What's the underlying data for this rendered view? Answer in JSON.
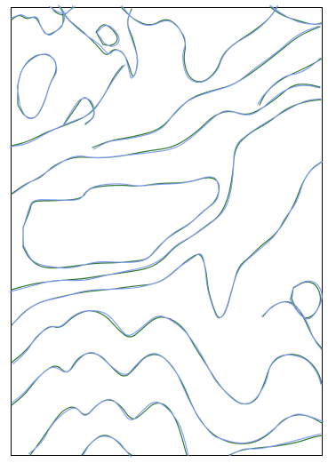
{
  "map": {
    "type": "contour-lines-comparison",
    "line_colors": {
      "blue": "#7f96ff",
      "green": "#2e7d32",
      "frame": "#000000"
    }
  }
}
